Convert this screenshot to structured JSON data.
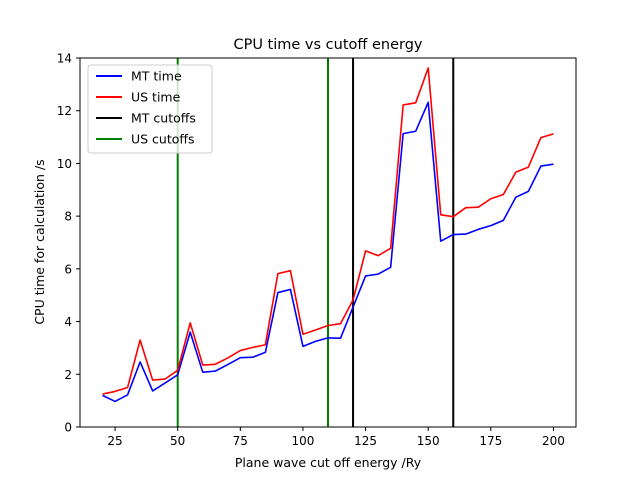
{
  "chart_data": {
    "type": "line",
    "title": "CPU time vs cutoff energy",
    "xlabel": "Plane wave cut off energy /Ry",
    "ylabel": "CPU time for calculation /s",
    "xlim": [
      11,
      209
    ],
    "ylim": [
      0,
      14
    ],
    "xticks": [
      "25",
      "50",
      "75",
      "100",
      "125",
      "150",
      "175",
      "200"
    ],
    "yticks": [
      "0",
      "2",
      "4",
      "6",
      "8",
      "10",
      "12",
      "14"
    ],
    "grid": false,
    "legend_position": "top-left",
    "x": [
      20,
      25,
      30,
      35,
      40,
      45,
      50,
      55,
      60,
      65,
      70,
      75,
      80,
      85,
      90,
      95,
      100,
      105,
      110,
      115,
      120,
      125,
      130,
      135,
      140,
      145,
      150,
      155,
      160,
      165,
      170,
      175,
      180,
      185,
      190,
      195,
      200
    ],
    "series": [
      {
        "name": "MT time",
        "color": "#0000ff",
        "values": [
          1.2,
          0.97,
          1.22,
          2.47,
          1.37,
          1.67,
          1.98,
          3.6,
          2.08,
          2.12,
          2.37,
          2.63,
          2.65,
          2.83,
          5.1,
          5.22,
          3.06,
          3.25,
          3.38,
          3.37,
          4.55,
          5.73,
          5.8,
          6.06,
          11.13,
          11.22,
          12.32,
          7.05,
          7.3,
          7.32,
          7.5,
          7.64,
          7.84,
          8.72,
          8.94,
          9.9,
          9.97
        ]
      },
      {
        "name": "US time",
        "color": "#ff0000",
        "values": [
          1.25,
          1.35,
          1.5,
          3.3,
          1.78,
          1.82,
          2.15,
          3.95,
          2.35,
          2.38,
          2.62,
          2.9,
          3.02,
          3.12,
          5.82,
          5.93,
          3.52,
          3.68,
          3.85,
          3.92,
          4.82,
          6.68,
          6.5,
          6.78,
          12.22,
          12.3,
          13.62,
          8.05,
          7.98,
          8.32,
          8.34,
          8.66,
          8.82,
          9.67,
          9.86,
          10.98,
          11.12
        ]
      }
    ],
    "vlines": [
      {
        "name": "MT cutoffs",
        "color": "#000000",
        "x": [
          120,
          160
        ]
      },
      {
        "name": "US cutoffs",
        "color": "#008000",
        "x": [
          50,
          110
        ]
      }
    ]
  }
}
